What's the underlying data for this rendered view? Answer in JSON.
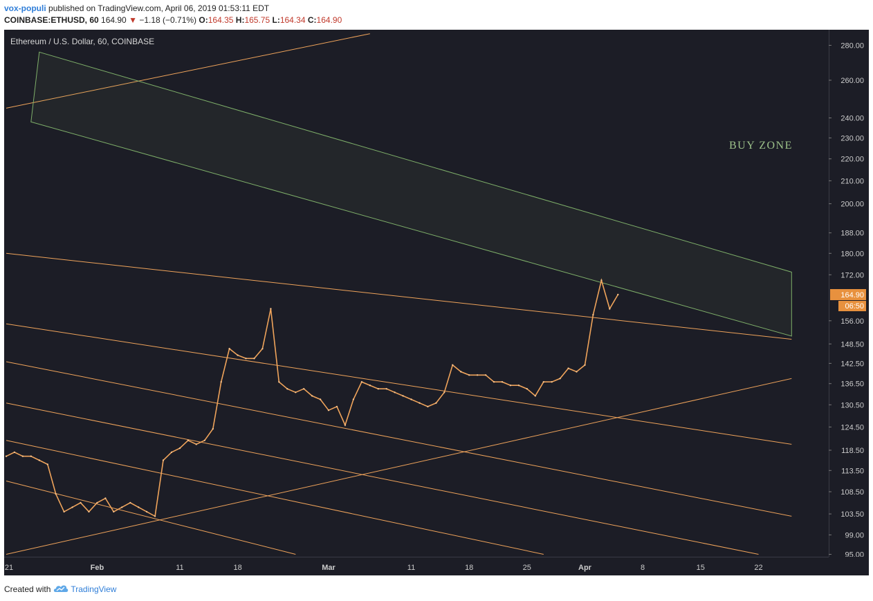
{
  "header": {
    "author": "vox-populi",
    "published_text": "published on TradingView.com, April 06, 2019 01:53:11 EDT",
    "symbol_line": {
      "symbol": "COINBASE:ETHUSD, 60",
      "last": "164.90",
      "change_arrow": "▼",
      "change": "−1.18 (−0.71%)",
      "open_label": "O:",
      "open": "164.35",
      "high_label": "H:",
      "high": "165.75",
      "low_label": "L:",
      "low": "164.34",
      "close_label": "C:",
      "close": "164.90"
    }
  },
  "footer": {
    "created_with": "Created with",
    "brand": "TradingView",
    "logo_icon": "tradingview-cloud-icon"
  },
  "colors": {
    "background": "#1c1d26",
    "candle": "#f0a45b",
    "channel": "#f0a45b",
    "buy_zone": "#7fb06a",
    "price_tag": "#e8913e",
    "axis_text": "#cccccc"
  },
  "chart_data": {
    "type": "line",
    "title": "Ethereum / U.S. Dollar, 60, COINBASE",
    "annotation": "BUY ZONE",
    "price_tag": "164.90",
    "countdown_tag": "06:50",
    "y_scale": "log",
    "y_ticks": [
      "280.00",
      "260.00",
      "240.00",
      "230.00",
      "220.00",
      "210.00",
      "200.00",
      "188.00",
      "180.00",
      "172.00",
      "164.90",
      "156.00",
      "148.50",
      "142.50",
      "136.50",
      "130.50",
      "124.50",
      "118.50",
      "113.50",
      "108.50",
      "103.50",
      "99.00",
      "95.00"
    ],
    "x_ticks": [
      "21",
      "Feb",
      "11",
      "18",
      "Mar",
      "11",
      "18",
      "25",
      "Apr",
      "8",
      "15",
      "22"
    ],
    "ylim": [
      95,
      290
    ],
    "series": [
      {
        "x": [
          "Jan 21",
          "Jan 22",
          "Jan 23",
          "Jan 24",
          "Jan 25",
          "Jan 26",
          "Jan 27",
          "Jan 28",
          "Jan 29",
          "Jan 30",
          "Jan 31",
          "Feb 1",
          "Feb 2",
          "Feb 3",
          "Feb 4",
          "Feb 5",
          "Feb 6",
          "Feb 7",
          "Feb 8",
          "Feb 9",
          "Feb 10",
          "Feb 11",
          "Feb 12",
          "Feb 13",
          "Feb 14",
          "Feb 15",
          "Feb 16",
          "Feb 17",
          "Feb 18",
          "Feb 19",
          "Feb 20",
          "Feb 21",
          "Feb 22",
          "Feb 23",
          "Feb 24",
          "Feb 25",
          "Feb 26",
          "Feb 27",
          "Feb 28",
          "Mar 1",
          "Mar 2",
          "Mar 3",
          "Mar 4",
          "Mar 5",
          "Mar 6",
          "Mar 7",
          "Mar 8",
          "Mar 9",
          "Mar 10",
          "Mar 11",
          "Mar 12",
          "Mar 13",
          "Mar 14",
          "Mar 15",
          "Mar 16",
          "Mar 17",
          "Mar 18",
          "Mar 19",
          "Mar 20",
          "Mar 21",
          "Mar 22",
          "Mar 23",
          "Mar 24",
          "Mar 25",
          "Mar 26",
          "Mar 27",
          "Mar 28",
          "Mar 29",
          "Mar 30",
          "Mar 31",
          "Apr 1",
          "Apr 2",
          "Apr 3",
          "Apr 4",
          "Apr 5"
        ],
        "values": [
          117,
          118,
          117,
          117,
          116,
          115,
          108,
          104,
          105,
          106,
          104,
          106,
          107,
          104,
          105,
          106,
          105,
          104,
          103,
          116,
          118,
          119,
          121,
          120,
          121,
          124,
          137,
          147,
          145,
          144,
          144,
          147,
          160,
          137,
          135,
          134,
          135,
          133,
          132,
          129,
          130,
          125,
          132,
          137,
          136,
          135,
          135,
          134,
          133,
          132,
          131,
          130,
          131,
          134,
          142,
          140,
          139,
          139,
          139,
          137,
          137,
          136,
          136,
          135,
          133,
          137,
          137,
          138,
          141,
          140,
          142,
          158,
          170,
          160,
          164.9
        ]
      }
    ],
    "lines": [
      {
        "type": "channel",
        "points": [
          [
            "Jan 21",
            180
          ],
          [
            "Apr 26",
            150
          ]
        ]
      },
      {
        "type": "channel",
        "points": [
          [
            "Jan 21",
            155
          ],
          [
            "Apr 26",
            120
          ]
        ]
      },
      {
        "type": "channel",
        "points": [
          [
            "Jan 21",
            143
          ],
          [
            "Apr 26",
            103
          ]
        ]
      },
      {
        "type": "channel",
        "points": [
          [
            "Jan 21",
            131
          ],
          [
            "Apr 22",
            95
          ]
        ]
      },
      {
        "type": "channel",
        "points": [
          [
            "Jan 21",
            121
          ],
          [
            "Mar 27",
            95
          ]
        ]
      },
      {
        "type": "channel",
        "points": [
          [
            "Jan 21",
            111
          ],
          [
            "Feb 25",
            95
          ]
        ]
      },
      {
        "type": "trendline",
        "points": [
          [
            "Jan 21",
            95
          ],
          [
            "Apr 26",
            138
          ]
        ]
      },
      {
        "type": "trendline",
        "points": [
          [
            "Jan 21",
            245
          ],
          [
            "Mar 6",
            287
          ]
        ]
      },
      {
        "type": "zone",
        "points": [
          [
            "Jan 25",
            276
          ],
          [
            "Apr 26",
            173
          ],
          [
            "Apr 26",
            151
          ],
          [
            "Jan 24",
            238
          ]
        ]
      }
    ]
  }
}
